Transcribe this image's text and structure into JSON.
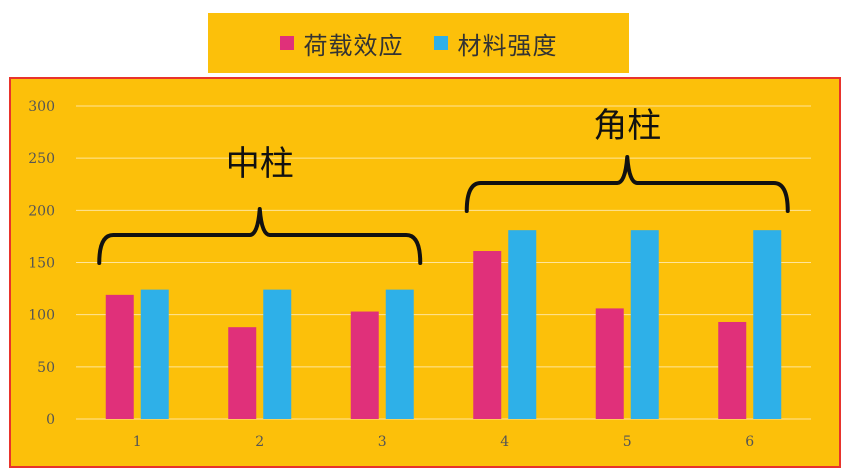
{
  "chart_data": {
    "type": "bar",
    "categories": [
      "1",
      "2",
      "3",
      "4",
      "5",
      "6"
    ],
    "series": [
      {
        "name": "荷载效应",
        "color": "#e0307a",
        "values": [
          119,
          88,
          103,
          161,
          106,
          93
        ]
      },
      {
        "name": "材料强度",
        "color": "#2eb0e8",
        "values": [
          124,
          124,
          124,
          181,
          181,
          181
        ]
      }
    ],
    "ylim": [
      0,
      300
    ],
    "yticks": [
      0,
      50,
      100,
      150,
      200,
      250,
      300
    ],
    "grid": true,
    "legend_placement": "top-center",
    "annotations": [
      {
        "text": "中柱",
        "categories": [
          "1",
          "3"
        ]
      },
      {
        "text": "角柱",
        "categories": [
          "4",
          "6"
        ]
      }
    ]
  }
}
